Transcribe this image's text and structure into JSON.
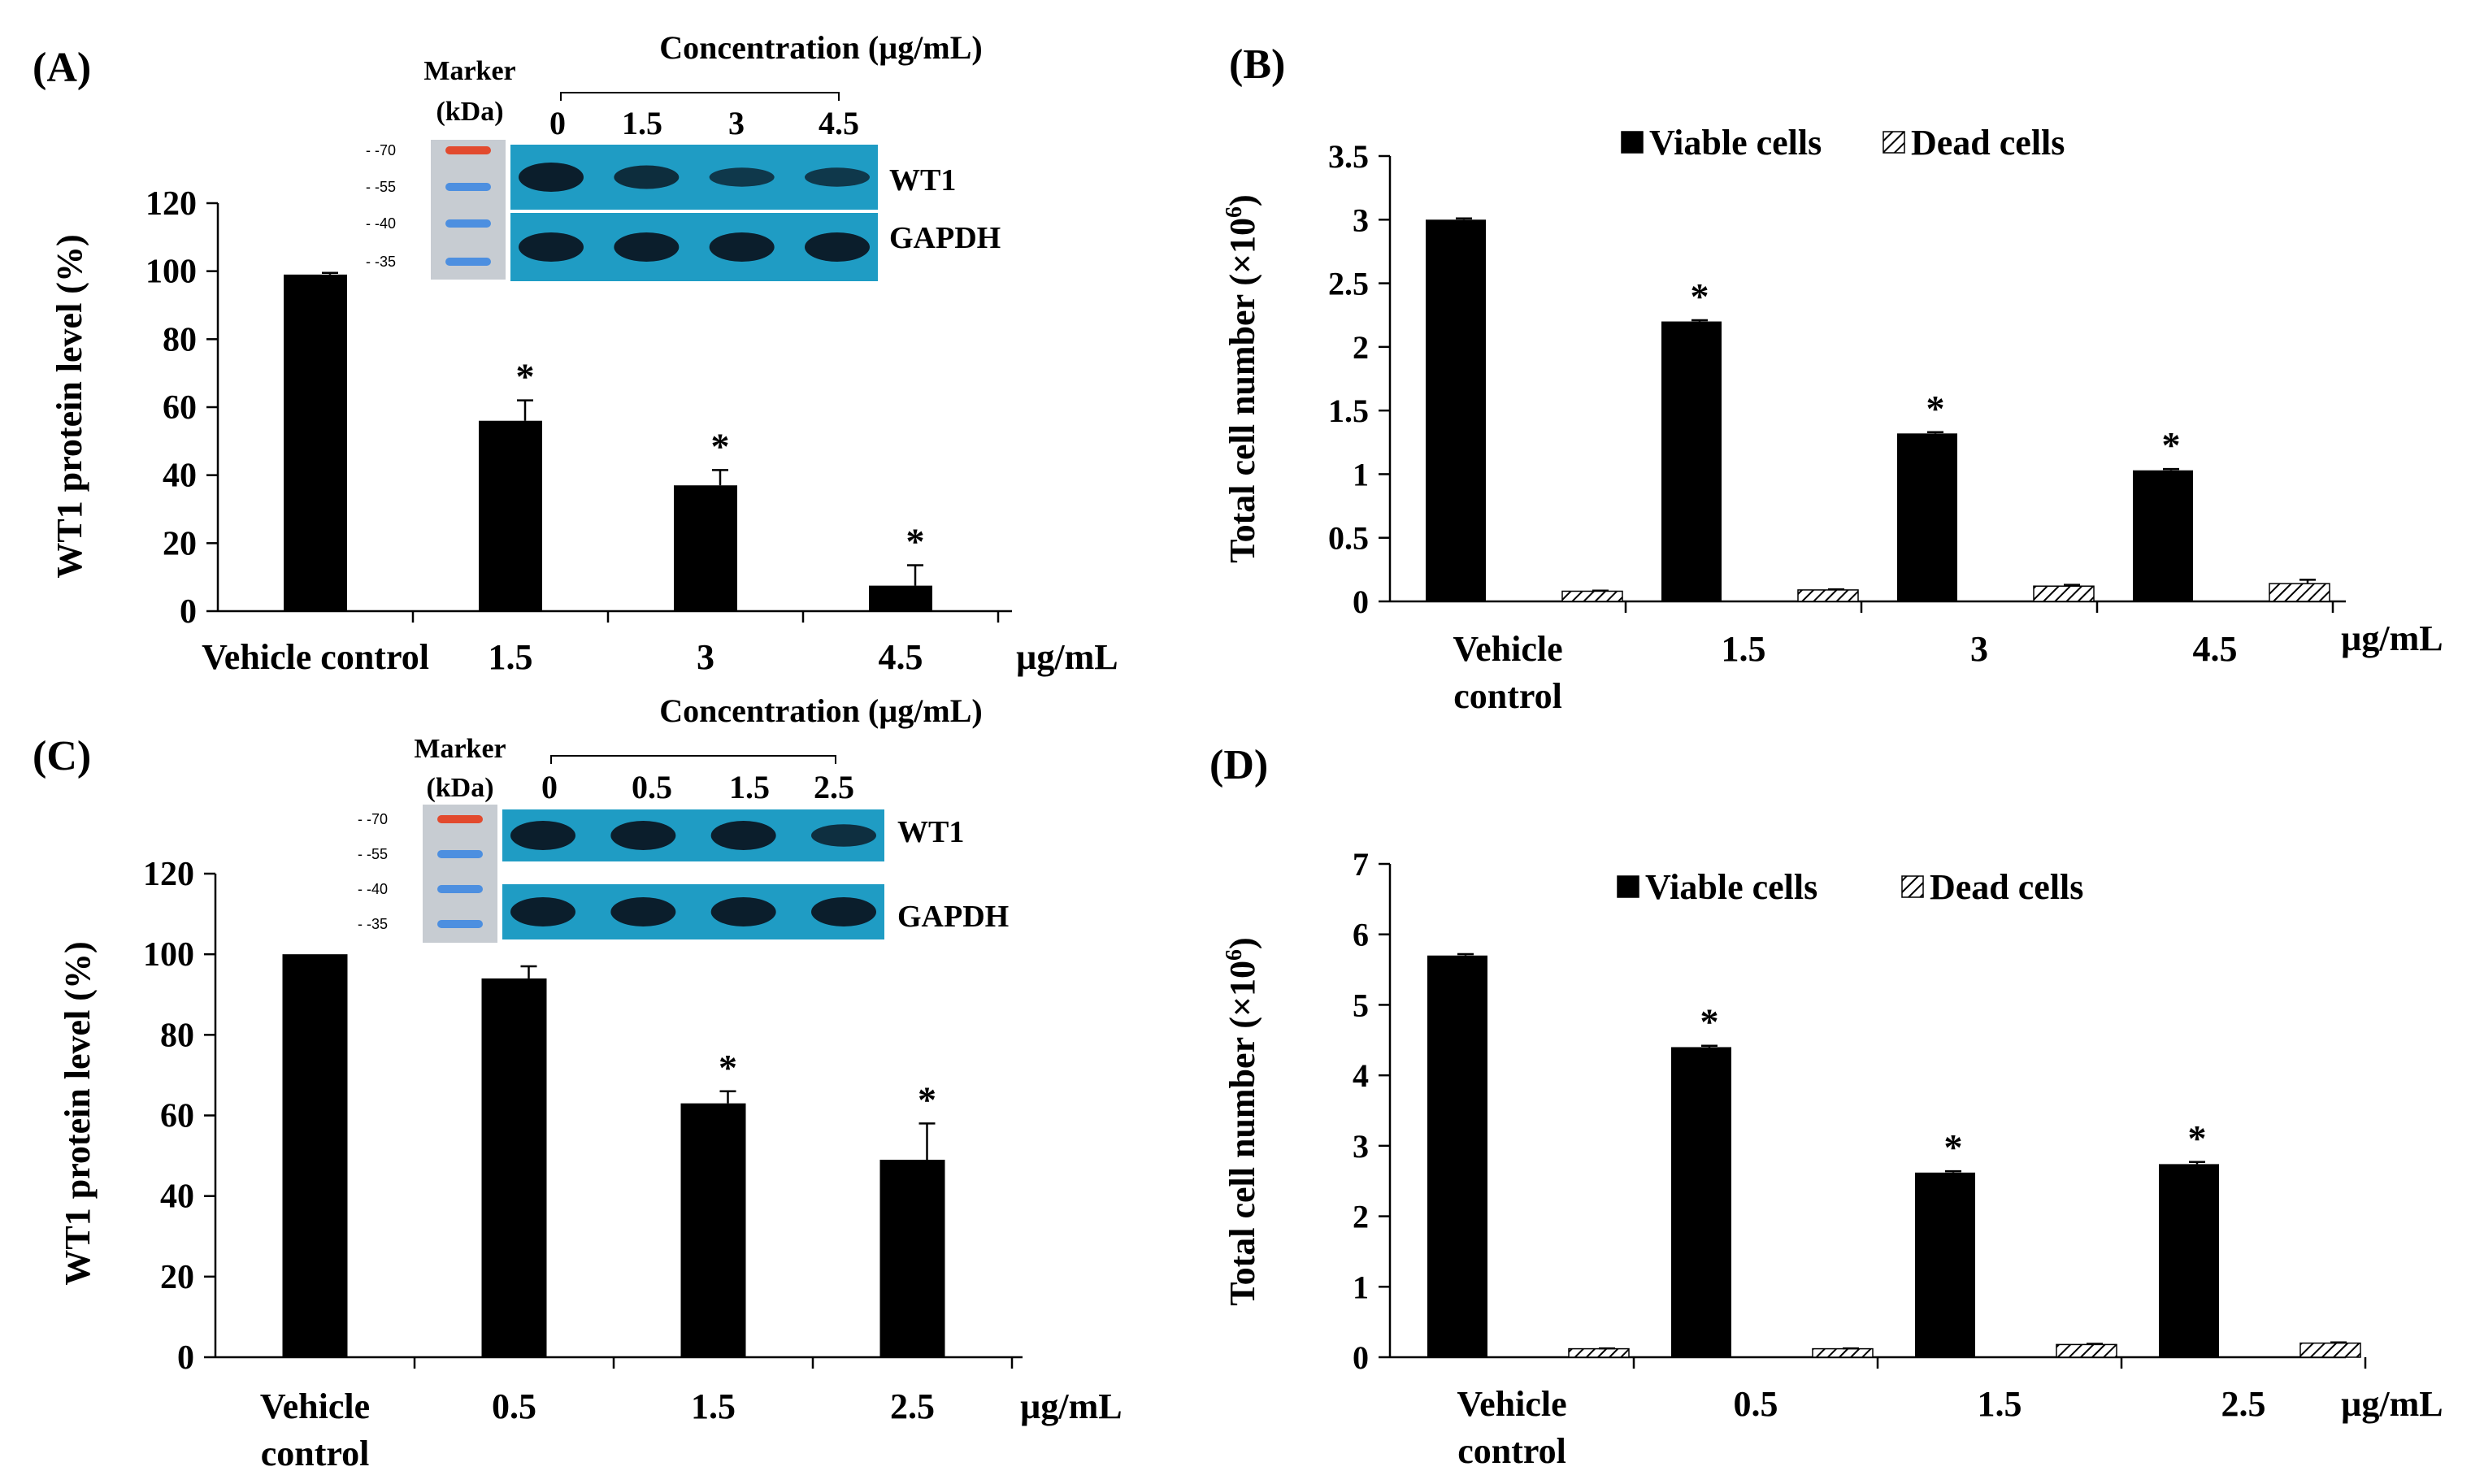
{
  "figure": {
    "panels": [
      "(A)",
      "(B)",
      "(C)",
      "(D)"
    ],
    "colors": {
      "bar": "#000000",
      "blot_bg": "#1f9cc4",
      "blot_band": "#0b1e2c",
      "marker_bg": "#c7ccd2",
      "marker_red": "#e24a2e",
      "marker_blue": "#4d8fe0"
    }
  },
  "chart_data": [
    {
      "panel": "(A)",
      "type": "bar",
      "title": "",
      "xlabel": "",
      "ylabel": "WT1  protein level (%)",
      "unit": "µg/mL",
      "ylim": [
        0,
        120
      ],
      "yticks": [
        "0",
        "20",
        "40",
        "60",
        "80",
        "100",
        "120"
      ],
      "categories": [
        "Vehicle control",
        "1.5",
        "3",
        "4.5"
      ],
      "series": [
        {
          "name": "WT1",
          "values": [
            99,
            56,
            37,
            7.5
          ],
          "errors": [
            0.5,
            6,
            4.5,
            6
          ]
        }
      ],
      "significance": [
        "",
        "*",
        "*",
        "*"
      ],
      "blot": {
        "title": "Concentration (µg/mL)",
        "marker_title": "Marker",
        "marker_unit": "(kDa)",
        "marker_labels": [
          "- -70",
          "- -55",
          "- -40",
          "- -35"
        ],
        "lanes": [
          "0",
          "1.5",
          "3",
          "4.5"
        ],
        "rows": [
          "WT1",
          "GAPDH"
        ],
        "band_intensity": {
          "WT1": [
            1.0,
            0.75,
            0.55,
            0.55
          ],
          "GAPDH": [
            1.0,
            1.0,
            1.0,
            1.0
          ]
        }
      }
    },
    {
      "panel": "(B)",
      "type": "bar",
      "title": "",
      "xlabel": "",
      "ylabel": "Total cell number (×10",
      "ylabel_sup": "6",
      "ylabel_close": ")",
      "unit": "µg/mL",
      "ylim": [
        0,
        3.5
      ],
      "yticks": [
        "0",
        "0.5",
        "1",
        "1.5",
        "2",
        "2.5",
        "3",
        "3.5"
      ],
      "categories": [
        "Vehicle control",
        "1.5",
        "3",
        "4.5"
      ],
      "legend": {
        "position": "top-center",
        "entries": [
          "Viable cells",
          "Dead cells"
        ]
      },
      "series": [
        {
          "name": "Viable cells",
          "pattern": "solid",
          "values": [
            3.0,
            2.2,
            1.32,
            1.03
          ],
          "errors": [
            0.01,
            0.01,
            0.01,
            0.01
          ]
        },
        {
          "name": "Dead cells",
          "pattern": "hatch",
          "values": [
            0.08,
            0.09,
            0.12,
            0.14
          ],
          "errors": [
            0.005,
            0.005,
            0.01,
            0.03
          ]
        }
      ],
      "significance": [
        "",
        "*",
        "*",
        "*"
      ]
    },
    {
      "panel": "(C)",
      "type": "bar",
      "title": "",
      "xlabel": "",
      "ylabel": "WT1  protein level (%)",
      "unit": "µg/mL",
      "ylim": [
        0,
        120
      ],
      "yticks": [
        "0",
        "20",
        "40",
        "60",
        "80",
        "100",
        "120"
      ],
      "categories": [
        "Vehicle control",
        "0.5",
        "1.5",
        "2.5"
      ],
      "series": [
        {
          "name": "WT1",
          "values": [
            100,
            94,
            63,
            49
          ],
          "errors": [
            0,
            3,
            3,
            9
          ]
        }
      ],
      "significance": [
        "",
        "",
        "*",
        "*"
      ],
      "blot": {
        "title": "Concentration (µg/mL)",
        "marker_title": "Marker",
        "marker_unit": "(kDa)",
        "marker_labels": [
          "- -70",
          "- -55",
          "- -40",
          "- -35"
        ],
        "lanes": [
          "0",
          "0.5",
          "1.5",
          "2.5"
        ],
        "rows": [
          "WT1",
          "GAPDH"
        ],
        "band_intensity": {
          "WT1": [
            1.0,
            1.0,
            1.0,
            0.7
          ],
          "GAPDH": [
            1.0,
            1.0,
            1.0,
            1.0
          ]
        }
      }
    },
    {
      "panel": "(D)",
      "type": "bar",
      "title": "",
      "xlabel": "",
      "ylabel": "Total cell number (×10",
      "ylabel_sup": "6",
      "ylabel_close": ")",
      "unit": "µg/mL",
      "ylim": [
        0,
        7
      ],
      "yticks": [
        "0",
        "1",
        "2",
        "3",
        "4",
        "5",
        "6",
        "7"
      ],
      "categories": [
        "Vehicle control",
        "0.5",
        "1.5",
        "2.5"
      ],
      "legend": {
        "position": "top-center",
        "entries": [
          "Viable cells",
          "Dead cells"
        ]
      },
      "series": [
        {
          "name": "Viable cells",
          "pattern": "solid",
          "values": [
            5.7,
            4.4,
            2.62,
            2.74
          ],
          "errors": [
            0.02,
            0.02,
            0.02,
            0.03
          ]
        },
        {
          "name": "Dead cells",
          "pattern": "hatch",
          "values": [
            0.12,
            0.12,
            0.18,
            0.2
          ],
          "errors": [
            0.005,
            0.005,
            0.01,
            0.01
          ]
        }
      ],
      "significance": [
        "",
        "*",
        "*",
        "*"
      ]
    }
  ]
}
